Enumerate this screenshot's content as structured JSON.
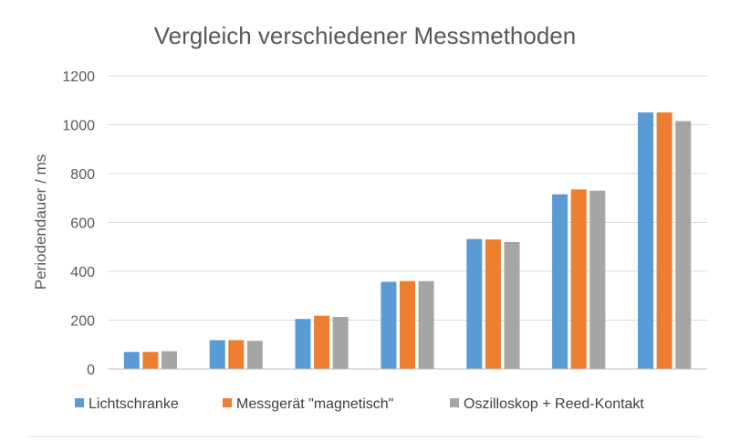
{
  "chart_data": {
    "type": "bar",
    "title": "Vergleich verschiedener  Messmethoden",
    "xlabel": "",
    "ylabel": "Periodendauer / ms",
    "ylim": [
      0,
      1200
    ],
    "yticks": [
      0,
      200,
      400,
      600,
      800,
      1000,
      1200
    ],
    "grid": true,
    "legend_position": "bottom",
    "categories": [
      "",
      "",
      "",
      "",
      "",
      "",
      ""
    ],
    "series": [
      {
        "name": "Lichtschranke",
        "color": "#5B9BD5",
        "values": [
          70,
          118,
          205,
          357,
          532,
          715,
          1050
        ]
      },
      {
        "name": "Messgerät \"magnetisch\"",
        "color": "#ED7D31",
        "values": [
          70,
          118,
          218,
          360,
          530,
          735,
          1050
        ]
      },
      {
        "name": "Oszilloskop + Reed-Kontakt",
        "color": "#A5A5A5",
        "values": [
          73,
          115,
          213,
          360,
          520,
          730,
          1015
        ]
      }
    ]
  }
}
